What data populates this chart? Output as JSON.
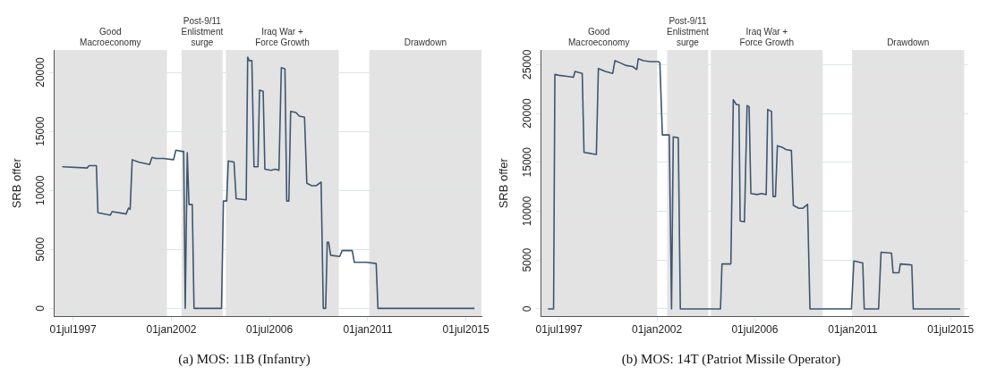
{
  "chart_data": [
    {
      "type": "line",
      "title": "(a) MOS: 11B (Infantry)",
      "ylabel": "SRB offer",
      "grid": "y",
      "marker": "none",
      "line_style": "solid",
      "xlim": [
        "1996-08-11",
        "2016-03-17"
      ],
      "xticks": [
        {
          "value": "1997-07-01",
          "label": "01jul1997"
        },
        {
          "value": "2002-01-01",
          "label": "01jan2002"
        },
        {
          "value": "2006-07-01",
          "label": "01jul2006"
        },
        {
          "value": "2011-01-01",
          "label": "01jan2011"
        },
        {
          "value": "2015-07-01",
          "label": "01jul2015"
        }
      ],
      "ylim": [
        -700,
        21900
      ],
      "yticks": [
        0,
        5000,
        10000,
        15000,
        20000
      ],
      "bands": [
        {
          "axis": "x",
          "from": "1996-08-11",
          "to": "2001-10-19",
          "label": "Good Macroeconomy",
          "color": "#e3e3e3"
        },
        {
          "axis": "x",
          "from": "2002-06-20",
          "to": "2004-05-10",
          "label": "Post-9/11 Enlistment surge",
          "color": "#e3e3e3"
        },
        {
          "axis": "x",
          "from": "2004-07-01",
          "to": "2009-09-02",
          "label": "Iraq War + Force Growth",
          "color": "#e3e3e3"
        },
        {
          "axis": "x",
          "from": "2011-01-26",
          "to": "2016-03-17",
          "label": "Drawdown",
          "color": "#e3e3e3"
        }
      ],
      "series": [
        {
          "color": "#3f5670",
          "x": [
            "1997-01-01",
            "1998-02-21",
            "1998-03-27",
            "1998-07-26",
            "1998-08-21",
            "1999-03-17",
            "1999-04-15",
            "1999-12-06",
            "2000-01-15",
            "2000-02-11",
            "2000-03-17",
            "2000-07-01",
            "2001-01-01",
            "2001-02-11",
            "2001-04-15",
            "2001-08-21",
            "2002-02-07",
            "2002-03-17",
            "2002-07-01",
            "2002-07-26",
            "2002-08-21",
            "2002-09-24",
            "2002-10-23",
            "2002-12-17",
            "2003-01-15",
            "2004-04-19",
            "2004-05-21",
            "2004-07-15",
            "2004-08-11",
            "2004-11-14",
            "2004-12-20",
            "2005-06-06",
            "2005-07-01",
            "2005-07-26",
            "2005-09-09",
            "2005-10-15",
            "2005-12-20",
            "2006-01-15",
            "2006-03-17",
            "2006-04-15",
            "2006-07-26",
            "2006-10-05",
            "2006-12-06",
            "2007-01-15",
            "2007-03-17",
            "2007-04-15",
            "2007-05-21",
            "2007-06-20",
            "2007-09-17",
            "2007-11-11",
            "2008-02-07",
            "2008-03-17",
            "2008-06-06",
            "2008-08-21",
            "2008-11-11",
            "2008-12-17",
            "2009-01-26",
            "2009-02-21",
            "2009-03-17",
            "2009-04-19",
            "2009-09-17",
            "2009-10-28",
            "2010-04-15",
            "2010-05-21",
            "2010-12-06",
            "2011-05-21",
            "2011-06-20",
            "2015-11-21"
          ],
          "values": [
            12000,
            11900,
            12100,
            12100,
            8100,
            7900,
            8200,
            8000,
            8500,
            8400,
            12600,
            12400,
            12200,
            12800,
            12700,
            12700,
            12600,
            13400,
            13300,
            13300,
            0,
            13200,
            8800,
            8800,
            0,
            0,
            9100,
            9100,
            12500,
            12400,
            9300,
            9200,
            21300,
            21000,
            21000,
            12000,
            12000,
            18500,
            18400,
            11800,
            11700,
            11800,
            11700,
            20400,
            20300,
            9100,
            9100,
            16700,
            16600,
            16300,
            16200,
            10600,
            10400,
            10400,
            10700,
            0,
            0,
            5600,
            5600,
            4500,
            4400,
            4900,
            4900,
            3900,
            3900,
            3800,
            0,
            0
          ]
        }
      ]
    },
    {
      "type": "line",
      "title": "(b) MOS: 14T (Patriot Missile Operator)",
      "ylabel": "SRB offer",
      "grid": "y",
      "marker": "none",
      "line_style": "solid",
      "xlim": [
        "1996-08-25",
        "2016-04-23"
      ],
      "xticks": [
        {
          "value": "1997-07-01",
          "label": "01jul1997"
        },
        {
          "value": "2002-01-01",
          "label": "01jan2002"
        },
        {
          "value": "2006-07-01",
          "label": "01jul2006"
        },
        {
          "value": "2011-01-01",
          "label": "01jan2011"
        },
        {
          "value": "2015-07-01",
          "label": "01jul2015"
        }
      ],
      "ylim": [
        -790,
        26490
      ],
      "yticks": [
        0,
        5000,
        10000,
        15000,
        20000,
        25000
      ],
      "bands": [
        {
          "axis": "x",
          "from": "1996-08-25",
          "to": "2002-01-05",
          "label": "Good Macroeconomy",
          "color": "#e3e3e3"
        },
        {
          "axis": "x",
          "from": "2002-06-20",
          "to": "2004-05-10",
          "label": "Post-9/11 Enlistment surge",
          "color": "#e3e3e3"
        },
        {
          "axis": "x",
          "from": "2004-06-24",
          "to": "2009-08-14",
          "label": "Iraq War + Force Growth",
          "color": "#e3e3e3"
        },
        {
          "axis": "x",
          "from": "2010-12-20",
          "to": "2016-02-14",
          "label": "Drawdown",
          "color": "#e3e3e3"
        }
      ],
      "series": [
        {
          "color": "#3f5670",
          "x": [
            "1996-12-27",
            "1997-04-01",
            "1997-04-23",
            "1997-07-01",
            "1997-11-14",
            "1998-02-28",
            "1998-03-27",
            "1998-07-26",
            "1998-08-25",
            "1998-12-20",
            "1999-03-20",
            "1999-04-23",
            "1999-08-18",
            "1999-12-20",
            "2000-01-26",
            "2000-04-15",
            "2000-08-03",
            "2000-11-18",
            "2001-01-26",
            "2001-02-21",
            "2001-05-21",
            "2001-09-09",
            "2002-01-19",
            "2002-02-18",
            "2002-04-01",
            "2002-07-26",
            "2002-09-02",
            "2002-10-01",
            "2002-12-24",
            "2003-01-28",
            "2004-12-02",
            "2004-12-27",
            "2005-05-25",
            "2005-07-05",
            "2005-08-25",
            "2005-10-08",
            "2005-10-28",
            "2006-01-08",
            "2006-02-21",
            "2006-03-27",
            "2006-04-26",
            "2006-08-11",
            "2006-10-19",
            "2007-01-08",
            "2007-02-03",
            "2007-04-08",
            "2007-05-03",
            "2007-06-13",
            "2007-07-15",
            "2007-10-15",
            "2007-12-06",
            "2008-03-06",
            "2008-04-08",
            "2008-07-08",
            "2008-09-17",
            "2008-12-02",
            "2009-01-12",
            "2010-12-09",
            "2011-01-19",
            "2011-06-17",
            "2011-07-12",
            "2012-03-09",
            "2012-04-19",
            "2012-10-12",
            "2012-11-07",
            "2013-02-14",
            "2013-03-09",
            "2013-09-17",
            "2013-10-12",
            "2015-12-09"
          ],
          "values": [
            0,
            0,
            24000,
            23900,
            23800,
            23700,
            24300,
            24100,
            16000,
            15900,
            15800,
            24600,
            24300,
            24100,
            25400,
            25200,
            24900,
            24800,
            24500,
            25600,
            25400,
            25300,
            25300,
            25200,
            17800,
            17800,
            0,
            17600,
            17500,
            0,
            0,
            4600,
            4600,
            21400,
            20900,
            20900,
            9000,
            8900,
            20800,
            20700,
            11800,
            11700,
            11800,
            11700,
            20400,
            20200,
            11500,
            11500,
            16700,
            16500,
            16300,
            16200,
            10600,
            10300,
            10300,
            10700,
            0,
            0,
            4900,
            4700,
            0,
            0,
            5800,
            5700,
            3700,
            3700,
            4600,
            4500,
            0,
            0
          ]
        }
      ]
    }
  ]
}
